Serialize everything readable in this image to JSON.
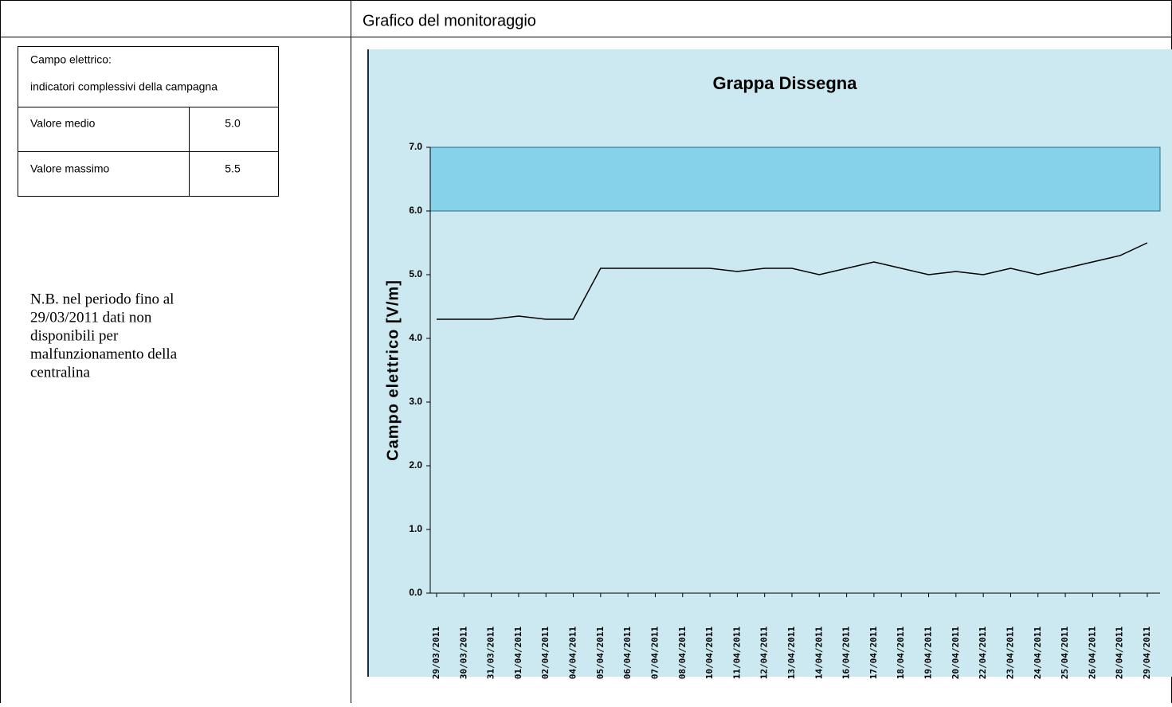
{
  "header": {
    "title": "Grafico del monitoraggio"
  },
  "summary_table": {
    "title_lines": [
      "Campo elettrico:",
      "indicatori complessivi della campagna"
    ],
    "rows": [
      [
        "Valore medio",
        "5.0"
      ],
      [
        "Valore massimo",
        "5.5"
      ]
    ]
  },
  "note": {
    "lines": [
      "N.B. nel periodo fino al",
      "29/03/2011 dati non",
      "disponibili per",
      "malfunzionamento della",
      "centralina"
    ]
  },
  "chart_data": {
    "type": "line",
    "title": "Grappa Dissegna",
    "y_label": "Campo elettrico [V/m]",
    "categories": [
      "29/03/2011",
      "30/03/2011",
      "31/03/2011",
      "01/04/2011",
      "02/04/2011",
      "04/04/2011",
      "05/04/2011",
      "06/04/2011",
      "07/04/2011",
      "08/04/2011",
      "10/04/2011",
      "11/04/2011",
      "12/04/2011",
      "13/04/2011",
      "14/04/2011",
      "16/04/2011",
      "17/04/2011",
      "18/04/2011",
      "19/04/2011",
      "20/04/2011",
      "22/04/2011",
      "23/04/2011",
      "24/04/2011",
      "25/04/2011",
      "26/04/2011",
      "28/04/2011",
      "29/04/2011"
    ],
    "series": [
      {
        "color": "#000000",
        "values": [
          4.3,
          4.3,
          4.3,
          4.35,
          4.3,
          4.3,
          5.1,
          5.1,
          5.1,
          5.1,
          5.1,
          5.05,
          5.1,
          5.1,
          5.0,
          5.1,
          5.2,
          5.1,
          5.0,
          5.05,
          5.0,
          5.1,
          5.0,
          5.1,
          5.2,
          5.3,
          5.5
        ]
      }
    ],
    "ylim": [
      0,
      7
    ],
    "yticks": [
      {
        "value": 0,
        "label": "0.0"
      },
      {
        "value": 1,
        "label": "1.0"
      },
      {
        "value": 2,
        "label": "2.0"
      },
      {
        "value": 3,
        "label": "3.0"
      },
      {
        "value": 4,
        "label": "4.0"
      },
      {
        "value": 5,
        "label": "5.0"
      },
      {
        "value": 6,
        "label": "6.0"
      },
      {
        "value": 7,
        "label": "7.0"
      }
    ],
    "shaded_range": [
      6,
      7
    ],
    "shaded_color": "#6fcbea"
  }
}
